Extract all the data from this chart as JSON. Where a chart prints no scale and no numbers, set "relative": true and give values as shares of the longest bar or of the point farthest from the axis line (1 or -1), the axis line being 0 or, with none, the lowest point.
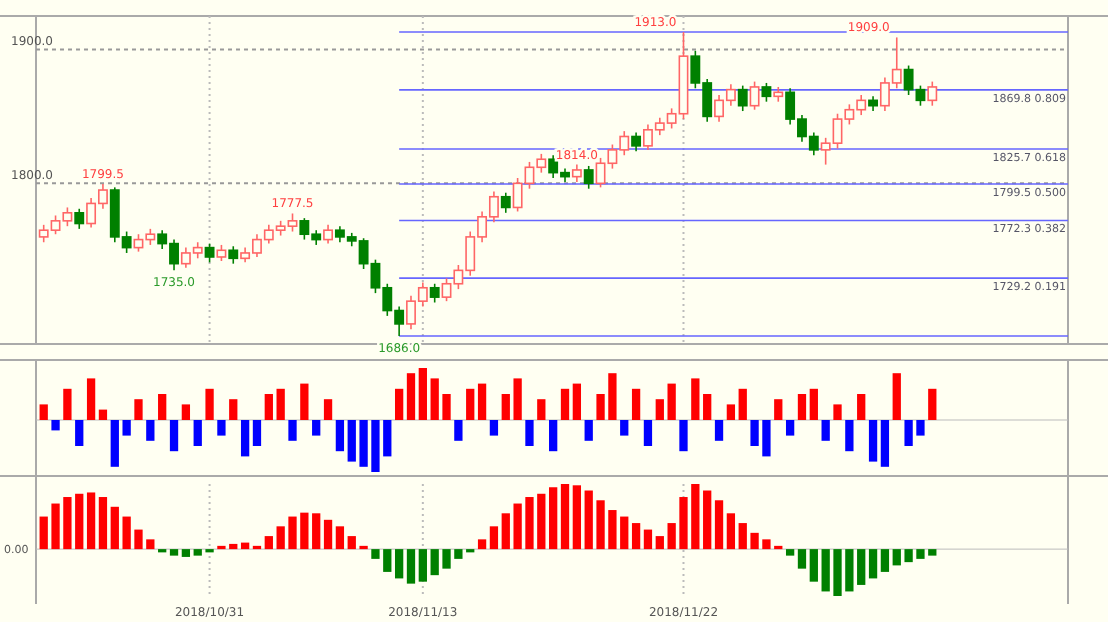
{
  "chart_data": [
    {
      "type": "candlestick",
      "categories": [
        null,
        null,
        null,
        null,
        null,
        null,
        null,
        null,
        null,
        null,
        null,
        null,
        null,
        null,
        "2018/10/31",
        null,
        null,
        null,
        null,
        null,
        null,
        null,
        null,
        null,
        null,
        null,
        null,
        null,
        null,
        null,
        null,
        null,
        "2018/11/13",
        null,
        null,
        null,
        null,
        null,
        null,
        null,
        null,
        null,
        null,
        null,
        null,
        null,
        null,
        null,
        null,
        null,
        null,
        null,
        null,
        null,
        "2018/11/22",
        null,
        null,
        null,
        null,
        null,
        null,
        null,
        null,
        null,
        null,
        null,
        null,
        null,
        null,
        null,
        null,
        null,
        null,
        null,
        null,
        null
      ],
      "ohlc": [
        [
          1760,
          1769,
          1756,
          1765
        ],
        [
          1765,
          1776,
          1762,
          1772
        ],
        [
          1772,
          1782,
          1768,
          1778
        ],
        [
          1778,
          1781,
          1766,
          1770
        ],
        [
          1770,
          1789,
          1767,
          1785
        ],
        [
          1785,
          1799.5,
          1781,
          1795
        ],
        [
          1795,
          1797,
          1756,
          1760
        ],
        [
          1760,
          1764,
          1748,
          1752
        ],
        [
          1752,
          1762,
          1749,
          1758
        ],
        [
          1758,
          1766,
          1754,
          1762
        ],
        [
          1762,
          1765,
          1751,
          1755
        ],
        [
          1755,
          1758,
          1735,
          1740
        ],
        [
          1740,
          1752,
          1737,
          1748
        ],
        [
          1748,
          1756,
          1744,
          1752
        ],
        [
          1752,
          1755,
          1741,
          1745
        ],
        [
          1745,
          1754,
          1742,
          1750
        ],
        [
          1750,
          1753,
          1740,
          1744
        ],
        [
          1744,
          1752,
          1741,
          1748
        ],
        [
          1748,
          1762,
          1745,
          1758
        ],
        [
          1758,
          1769,
          1755,
          1765
        ],
        [
          1765,
          1772,
          1761,
          1768
        ],
        [
          1768,
          1777.5,
          1764,
          1772
        ],
        [
          1772,
          1774,
          1758,
          1762
        ],
        [
          1762,
          1765,
          1754,
          1758
        ],
        [
          1758,
          1769,
          1755,
          1765
        ],
        [
          1765,
          1768,
          1756,
          1760
        ],
        [
          1760,
          1763,
          1753,
          1757
        ],
        [
          1757,
          1759,
          1736,
          1740
        ],
        [
          1740,
          1743,
          1718,
          1722
        ],
        [
          1722,
          1725,
          1701,
          1705
        ],
        [
          1705,
          1708,
          1686,
          1695
        ],
        [
          1695,
          1716,
          1691,
          1712
        ],
        [
          1712,
          1726,
          1708,
          1722
        ],
        [
          1722,
          1725,
          1711,
          1715
        ],
        [
          1715,
          1729,
          1712,
          1725
        ],
        [
          1725,
          1739,
          1721,
          1735
        ],
        [
          1735,
          1764,
          1731,
          1760
        ],
        [
          1760,
          1779,
          1756,
          1775
        ],
        [
          1775,
          1794,
          1771,
          1790
        ],
        [
          1790,
          1793,
          1778,
          1782
        ],
        [
          1782,
          1804,
          1779,
          1800
        ],
        [
          1800,
          1816,
          1796,
          1812
        ],
        [
          1812,
          1822,
          1808,
          1818
        ],
        [
          1818,
          1821,
          1804,
          1808
        ],
        [
          1808,
          1811,
          1801,
          1805
        ],
        [
          1805,
          1814,
          1801,
          1810
        ],
        [
          1810,
          1813,
          1796,
          1800
        ],
        [
          1800,
          1819,
          1797,
          1815
        ],
        [
          1815,
          1829,
          1811,
          1825
        ],
        [
          1825,
          1839,
          1821,
          1835
        ],
        [
          1835,
          1838,
          1824,
          1828
        ],
        [
          1828,
          1844,
          1825,
          1840
        ],
        [
          1840,
          1849,
          1836,
          1845
        ],
        [
          1845,
          1856,
          1841,
          1852
        ],
        [
          1852,
          1913,
          1848,
          1895
        ],
        [
          1895,
          1899,
          1871,
          1875
        ],
        [
          1875,
          1878,
          1846,
          1850
        ],
        [
          1850,
          1866,
          1846,
          1862
        ],
        [
          1862,
          1874,
          1858,
          1870
        ],
        [
          1870,
          1873,
          1854,
          1858
        ],
        [
          1858,
          1876,
          1855,
          1872
        ],
        [
          1872,
          1875,
          1861,
          1865
        ],
        [
          1865,
          1872,
          1861,
          1868
        ],
        [
          1868,
          1871,
          1844,
          1848
        ],
        [
          1848,
          1851,
          1831,
          1835
        ],
        [
          1835,
          1838,
          1821,
          1825
        ],
        [
          1825,
          1834,
          1814,
          1830
        ],
        [
          1830,
          1852,
          1826,
          1848
        ],
        [
          1848,
          1859,
          1844,
          1855
        ],
        [
          1855,
          1866,
          1851,
          1862
        ],
        [
          1862,
          1865,
          1854,
          1858
        ],
        [
          1858,
          1879,
          1854,
          1875
        ],
        [
          1875,
          1909,
          1871,
          1885
        ],
        [
          1885,
          1888,
          1866,
          1870
        ],
        [
          1870,
          1873,
          1858,
          1862
        ],
        [
          1862,
          1876,
          1858,
          1872
        ]
      ],
      "ylim": [
        1680,
        1925
      ],
      "grid": true,
      "yticks": [
        {
          "value": 1800,
          "label": "1800.0"
        },
        {
          "value": 1900,
          "label": "1900.0"
        }
      ],
      "tick_labels": "y",
      "ref_lines": [
        {
          "axis": "y",
          "value": 1913,
          "color": "#6666ff"
        },
        {
          "axis": "y",
          "value": 1869.8,
          "label": "1869.8 0.809",
          "color": "#6666ff"
        },
        {
          "axis": "y",
          "value": 1825.7,
          "label": "1825.7 0.618",
          "color": "#6666ff"
        },
        {
          "axis": "y",
          "value": 1799.5,
          "label": "1799.5 0.500",
          "color": "#6666ff"
        },
        {
          "axis": "y",
          "value": 1772.3,
          "label": "1772.3 0.382",
          "color": "#6666ff"
        },
        {
          "axis": "y",
          "value": 1729.2,
          "label": "1729.2 0.191",
          "color": "#6666ff"
        },
        {
          "axis": "y",
          "value": 1686,
          "color": "#6666ff"
        }
      ],
      "annotations": [
        {
          "text": "1799.5",
          "y": 1799.5
        },
        {
          "text": "1777.5",
          "y": 1777.5
        },
        {
          "text": "1735.0",
          "y": 1735
        },
        {
          "text": "1686.0",
          "y": 1686
        },
        {
          "text": "1913.0",
          "y": 1913
        },
        {
          "text": "1814.0",
          "y": 1814
        },
        {
          "text": "1909.0",
          "y": 1909
        }
      ]
    },
    {
      "type": "bar",
      "relative": true,
      "categories": [
        null,
        null,
        null,
        null,
        null,
        null,
        null,
        null,
        null,
        null,
        null,
        null,
        null,
        null,
        null,
        null,
        null,
        null,
        null,
        null,
        null,
        null,
        null,
        null,
        null,
        null,
        null,
        null,
        null,
        null,
        null,
        null,
        null,
        null,
        null,
        null,
        null,
        null,
        null,
        null,
        null,
        null,
        null,
        null,
        null,
        null,
        null,
        null,
        null,
        null,
        null,
        null,
        null,
        null,
        null,
        null,
        null,
        null,
        null,
        null,
        null,
        null,
        null,
        null,
        null,
        null,
        null,
        null,
        null,
        null,
        null,
        null,
        null,
        null,
        null,
        null
      ],
      "values": [
        0.3,
        -0.2,
        0.6,
        -0.5,
        0.8,
        0.2,
        -0.9,
        -0.3,
        0.4,
        -0.4,
        0.5,
        -0.6,
        0.3,
        -0.5,
        0.6,
        -0.3,
        0.4,
        -0.7,
        -0.5,
        0.5,
        0.6,
        -0.4,
        0.7,
        -0.3,
        0.4,
        -0.6,
        -0.8,
        -0.9,
        -1.0,
        -0.7,
        0.6,
        0.9,
        1.0,
        0.8,
        0.5,
        -0.4,
        0.6,
        0.7,
        -0.3,
        0.5,
        0.8,
        -0.5,
        0.4,
        -0.6,
        0.6,
        0.7,
        -0.4,
        0.5,
        0.9,
        -0.3,
        0.6,
        -0.5,
        0.4,
        0.7,
        -0.6,
        0.8,
        0.5,
        -0.4,
        0.3,
        0.6,
        -0.5,
        -0.7,
        0.4,
        -0.3,
        0.5,
        0.6,
        -0.4,
        0.3,
        -0.6,
        0.5,
        -0.8,
        -0.9,
        0.9,
        -0.5,
        -0.3,
        0.6
      ],
      "colors": [
        "#ff0000",
        "#0000ff",
        "#ff0000",
        "#0000ff",
        "#ff0000",
        "#ff0000",
        "#0000ff",
        "#0000ff",
        "#ff0000",
        "#0000ff",
        "#ff0000",
        "#0000ff",
        "#ff0000",
        "#0000ff",
        "#ff0000",
        "#0000ff",
        "#ff0000",
        "#0000ff",
        "#0000ff",
        "#ff0000",
        "#ff0000",
        "#0000ff",
        "#ff0000",
        "#0000ff",
        "#ff0000",
        "#0000ff",
        "#0000ff",
        "#0000ff",
        "#0000ff",
        "#0000ff",
        "#ff0000",
        "#ff0000",
        "#ff0000",
        "#ff0000",
        "#ff0000",
        "#0000ff",
        "#ff0000",
        "#ff0000",
        "#0000ff",
        "#ff0000",
        "#ff0000",
        "#0000ff",
        "#ff0000",
        "#0000ff",
        "#ff0000",
        "#ff0000",
        "#0000ff",
        "#ff0000",
        "#ff0000",
        "#0000ff",
        "#ff0000",
        "#0000ff",
        "#ff0000",
        "#ff0000",
        "#0000ff",
        "#ff0000",
        "#ff0000",
        "#0000ff",
        "#ff0000",
        "#ff0000",
        "#0000ff",
        "#0000ff",
        "#ff0000",
        "#0000ff",
        "#ff0000",
        "#ff0000",
        "#0000ff",
        "#ff0000",
        "#0000ff",
        "#ff0000",
        "#0000ff",
        "#0000ff",
        "#ff0000",
        "#0000ff",
        "#0000ff",
        "#ff0000"
      ]
    },
    {
      "type": "bar",
      "relative": true,
      "tick_labels": "x",
      "grid": "x",
      "categories": [
        null,
        null,
        null,
        null,
        null,
        null,
        null,
        null,
        null,
        null,
        null,
        null,
        null,
        null,
        "2018/10/31",
        null,
        null,
        null,
        null,
        null,
        null,
        null,
        null,
        null,
        null,
        null,
        null,
        null,
        null,
        null,
        null,
        null,
        "2018/11/13",
        null,
        null,
        null,
        null,
        null,
        null,
        null,
        null,
        null,
        null,
        null,
        null,
        null,
        null,
        null,
        null,
        null,
        null,
        null,
        null,
        null,
        "2018/11/22",
        null,
        null,
        null,
        null,
        null,
        null,
        null,
        null,
        null,
        null,
        null,
        null,
        null,
        null,
        null,
        null,
        null,
        null,
        null,
        null,
        null
      ],
      "values": [
        0.5,
        0.7,
        0.8,
        0.85,
        0.87,
        0.8,
        0.65,
        0.5,
        0.3,
        0.15,
        -0.05,
        -0.1,
        -0.12,
        -0.1,
        -0.05,
        0.05,
        0.08,
        0.1,
        0.05,
        0.2,
        0.35,
        0.5,
        0.56,
        0.55,
        0.45,
        0.35,
        0.2,
        0.05,
        -0.15,
        -0.35,
        -0.45,
        -0.53,
        -0.5,
        -0.4,
        -0.3,
        -0.15,
        -0.05,
        0.15,
        0.35,
        0.55,
        0.7,
        0.8,
        0.85,
        0.95,
        1.0,
        0.98,
        0.9,
        0.75,
        0.6,
        0.5,
        0.4,
        0.3,
        0.2,
        0.4,
        0.8,
        1.0,
        0.9,
        0.75,
        0.55,
        0.4,
        0.25,
        0.15,
        0.05,
        -0.1,
        -0.3,
        -0.5,
        -0.65,
        -0.72,
        -0.65,
        -0.55,
        -0.45,
        -0.35,
        -0.25,
        -0.2,
        -0.15,
        -0.1
      ],
      "colors": [
        "#ff0000",
        "#ff0000",
        "#ff0000",
        "#ff0000",
        "#ff0000",
        "#ff0000",
        "#ff0000",
        "#ff0000",
        "#ff0000",
        "#ff0000",
        "#008000",
        "#008000",
        "#008000",
        "#008000",
        "#008000",
        "#ff0000",
        "#ff0000",
        "#ff0000",
        "#ff0000",
        "#ff0000",
        "#ff0000",
        "#ff0000",
        "#ff0000",
        "#ff0000",
        "#ff0000",
        "#ff0000",
        "#ff0000",
        "#ff0000",
        "#008000",
        "#008000",
        "#008000",
        "#008000",
        "#008000",
        "#008000",
        "#008000",
        "#008000",
        "#008000",
        "#ff0000",
        "#ff0000",
        "#ff0000",
        "#ff0000",
        "#ff0000",
        "#ff0000",
        "#ff0000",
        "#ff0000",
        "#ff0000",
        "#ff0000",
        "#ff0000",
        "#ff0000",
        "#ff0000",
        "#ff0000",
        "#ff0000",
        "#ff0000",
        "#ff0000",
        "#ff0000",
        "#ff0000",
        "#ff0000",
        "#ff0000",
        "#ff0000",
        "#ff0000",
        "#ff0000",
        "#ff0000",
        "#ff0000",
        "#008000",
        "#008000",
        "#008000",
        "#008000",
        "#008000",
        "#008000",
        "#008000",
        "#008000",
        "#008000",
        "#008000",
        "#008000",
        "#008000",
        "#008000"
      ],
      "annotations": [
        "0.00"
      ]
    }
  ]
}
